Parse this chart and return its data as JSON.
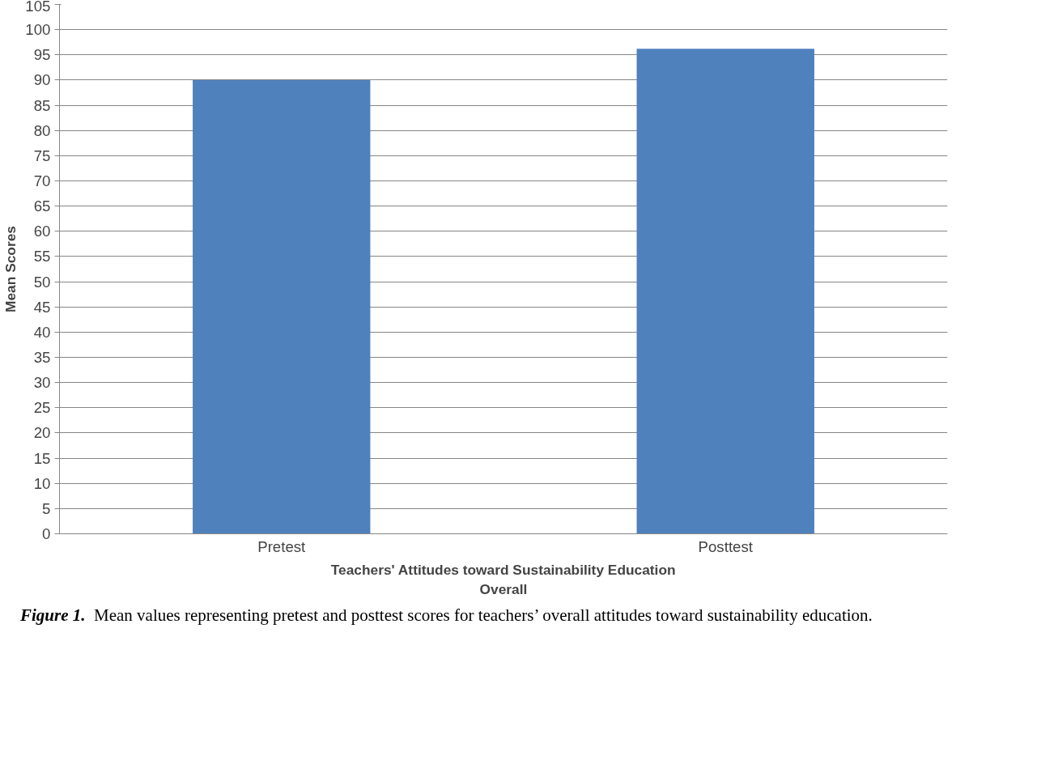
{
  "chart_data": {
    "type": "bar",
    "ylabel": "Mean Scores",
    "xlabel": "Teachers' Attitudes toward Sustainability Education\nOverall",
    "categories": [
      "Pretest",
      "Posttest"
    ],
    "values": [
      90.0,
      96.2
    ],
    "color": "#4f81bd",
    "ylim": [
      0,
      105
    ],
    "yticks": [
      0,
      5,
      10,
      15,
      20,
      25,
      30,
      35,
      40,
      45,
      50,
      55,
      60,
      65,
      70,
      75,
      80,
      85,
      90,
      95,
      100,
      105
    ],
    "grid": "y",
    "annotations": [
      "Figure 1.",
      "Mean values representing pretest and posttest scores for teachers’ overall attitudes toward sustainability education."
    ]
  }
}
